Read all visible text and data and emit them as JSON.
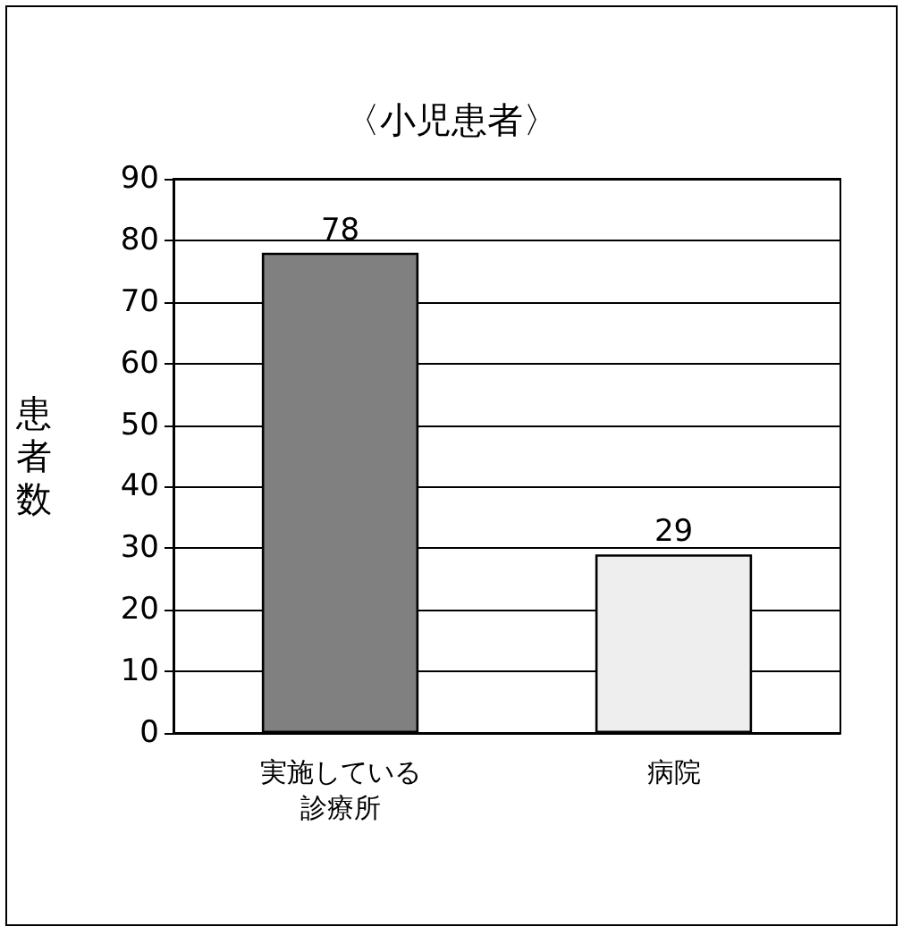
{
  "chart_data": {
    "type": "bar",
    "title": "〈小児患者〉",
    "ylabel": "患者数",
    "categories": [
      "実施している診療所",
      "病院"
    ],
    "values": [
      78,
      29
    ],
    "colors": [
      "#808080",
      "#eeeeee"
    ],
    "ylim": [
      0,
      90
    ],
    "yticks": [
      0,
      10,
      20,
      30,
      40,
      50,
      60,
      70,
      80,
      90
    ],
    "grid": true,
    "data_labels": true
  }
}
